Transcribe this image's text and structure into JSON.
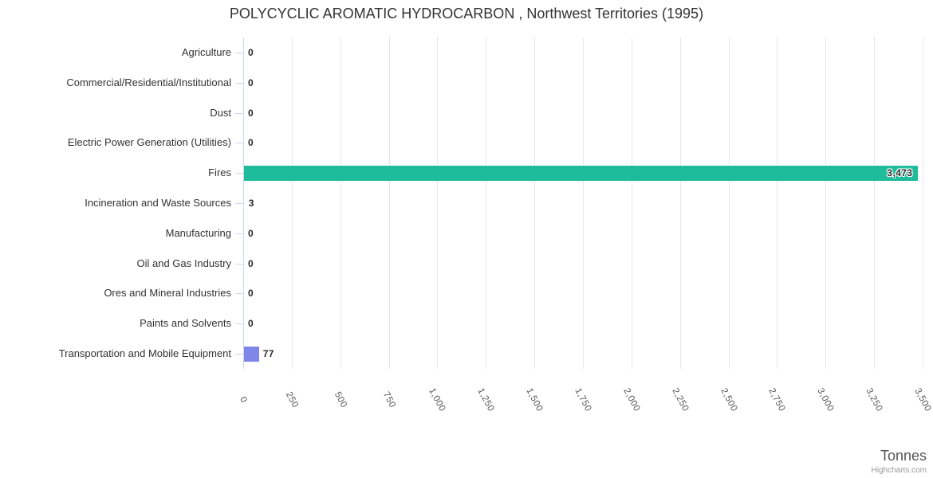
{
  "chart_data": {
    "type": "bar",
    "title": "POLYCYCLIC AROMATIC HYDROCARBON , Northwest Territories (1995)",
    "xlabel": "",
    "ylabel": "Tonnes",
    "credit": "Highcharts.com",
    "legend": false,
    "grid": true,
    "orientation": "horizontal",
    "categories": [
      "Agriculture",
      "Commercial/Residential/Institutional",
      "Dust",
      "Electric Power Generation (Utilities)",
      "Fires",
      "Incineration and Waste Sources",
      "Manufacturing",
      "Oil and Gas Industry",
      "Ores and Mineral Industries",
      "Paints and Solvents",
      "Transportation and Mobile Equipment"
    ],
    "values": [
      0,
      0,
      0,
      0,
      3473,
      3,
      0,
      0,
      0,
      0,
      77
    ],
    "value_labels": [
      "0",
      "0",
      "0",
      "0",
      "3,473",
      "3",
      "0",
      "0",
      "0",
      "0",
      "77"
    ],
    "bar_colors": [
      "",
      "",
      "",
      "",
      "#1EBC9B",
      "",
      "",
      "",
      "",
      "",
      "#8085E9"
    ],
    "xlim": [
      0,
      3500
    ],
    "tick_interval": 250,
    "tick_labels": [
      "0",
      "250",
      "500",
      "750",
      "1,000",
      "1,250",
      "1,500",
      "1,750",
      "2,000",
      "2,250",
      "2,500",
      "2,750",
      "3,000",
      "3,250",
      "3,500"
    ]
  },
  "style_colors": {
    "grid": "#e6e6e6",
    "axis": "#ccd6eb",
    "category_label": "#333333",
    "tick_label": "#555555",
    "data_label": "#2a2a2b",
    "title": "#333333",
    "axis_title": "#555555",
    "credit": "#999999",
    "background": "#ffffff"
  }
}
